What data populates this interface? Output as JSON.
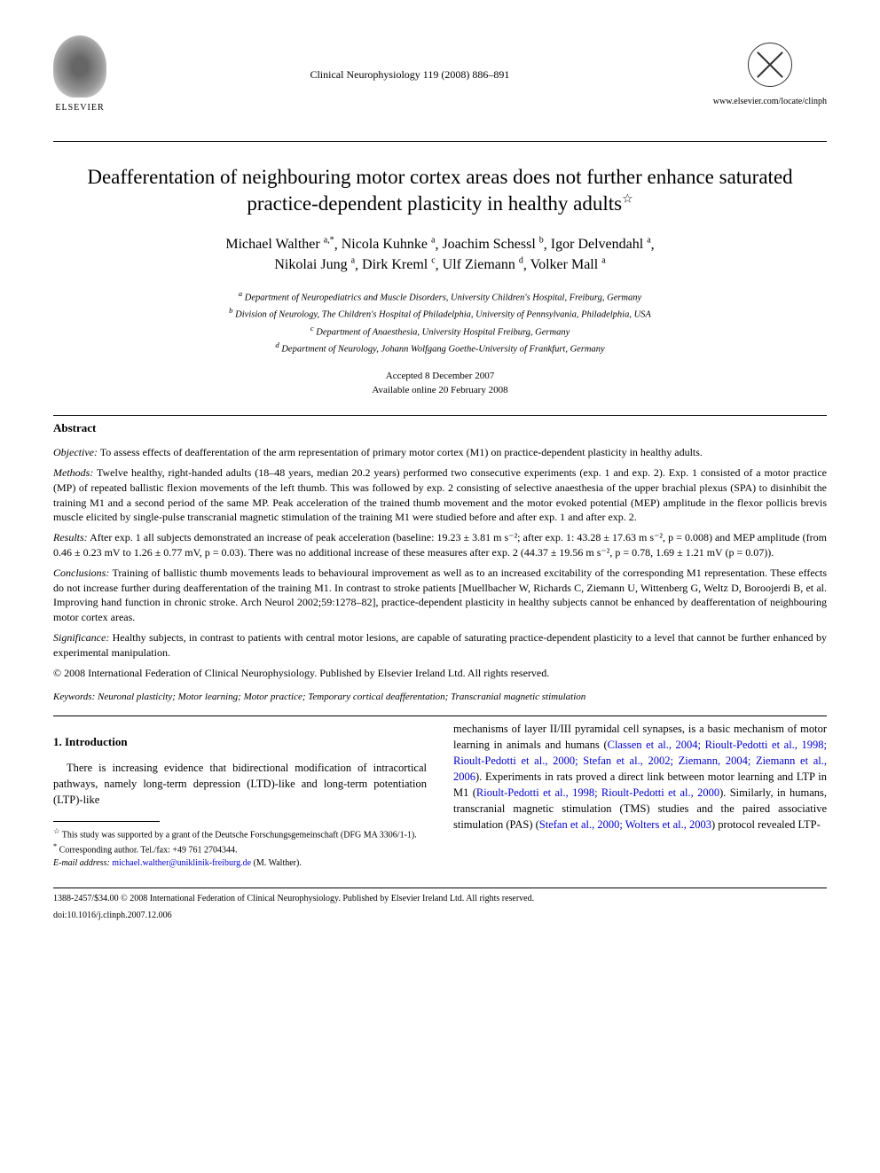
{
  "header": {
    "publisher": "ELSEVIER",
    "journal_citation": "Clinical Neurophysiology 119 (2008) 886–891",
    "journal_url": "www.elsevier.com/locate/clinph"
  },
  "title": "Deafferentation of neighbouring motor cortex areas does not further enhance saturated practice-dependent plasticity in healthy adults",
  "title_note_marker": "☆",
  "authors": [
    {
      "name": "Michael Walther",
      "affil": "a,*"
    },
    {
      "name": "Nicola Kuhnke",
      "affil": "a"
    },
    {
      "name": "Joachim Schessl",
      "affil": "b"
    },
    {
      "name": "Igor Delvendahl",
      "affil": "a"
    },
    {
      "name": "Nikolai Jung",
      "affil": "a"
    },
    {
      "name": "Dirk Kreml",
      "affil": "c"
    },
    {
      "name": "Ulf Ziemann",
      "affil": "d"
    },
    {
      "name": "Volker Mall",
      "affil": "a"
    }
  ],
  "affiliations": {
    "a": "Department of Neuropediatrics and Muscle Disorders, University Children's Hospital, Freiburg, Germany",
    "b": "Division of Neurology, The Children's Hospital of Philadelphia, University of Pennsylvania, Philadelphia, USA",
    "c": "Department of Anaesthesia, University Hospital Freiburg, Germany",
    "d": "Department of Neurology, Johann Wolfgang Goethe-University of Frankfurt, Germany"
  },
  "dates": {
    "accepted": "Accepted 8 December 2007",
    "available": "Available online 20 February 2008"
  },
  "abstract": {
    "heading": "Abstract",
    "objective_label": "Objective:",
    "objective": "To assess effects of deafferentation of the arm representation of primary motor cortex (M1) on practice-dependent plasticity in healthy adults.",
    "methods_label": "Methods:",
    "methods": "Twelve healthy, right-handed adults (18–48 years, median 20.2 years) performed two consecutive experiments (exp. 1 and exp. 2). Exp. 1 consisted of a motor practice (MP) of repeated ballistic flexion movements of the left thumb. This was followed by exp. 2 consisting of selective anaesthesia of the upper brachial plexus (SPA) to disinhibit the training M1 and a second period of the same MP. Peak acceleration of the trained thumb movement and the motor evoked potential (MEP) amplitude in the flexor pollicis brevis muscle elicited by single-pulse transcranial magnetic stimulation of the training M1 were studied before and after exp. 1 and after exp. 2.",
    "results_label": "Results:",
    "results": "After exp. 1 all subjects demonstrated an increase of peak acceleration (baseline: 19.23 ± 3.81 m s⁻²; after exp. 1: 43.28 ± 17.63 m s⁻², p = 0.008) and MEP amplitude (from 0.46 ± 0.23 mV to 1.26 ± 0.77 mV, p = 0.03). There was no additional increase of these measures after exp. 2 (44.37 ± 19.56 m s⁻², p = 0.78, 1.69 ± 1.21 mV (p = 0.07)).",
    "conclusions_label": "Conclusions:",
    "conclusions": "Training of ballistic thumb movements leads to behavioural improvement as well as to an increased excitability of the corresponding M1 representation. These effects do not increase further during deafferentation of the training M1. In contrast to stroke patients [Muellbacher W, Richards C, Ziemann U, Wittenberg G, Weltz D, Boroojerdi B, et al. Improving hand function in chronic stroke. Arch Neurol 2002;59:1278–82], practice-dependent plasticity in healthy subjects cannot be enhanced by deafferentation of neighbouring motor cortex areas.",
    "significance_label": "Significance:",
    "significance": "Healthy subjects, in contrast to patients with central motor lesions, are capable of saturating practice-dependent plasticity to a level that cannot be further enhanced by experimental manipulation.",
    "copyright": "© 2008 International Federation of Clinical Neurophysiology. Published by Elsevier Ireland Ltd. All rights reserved."
  },
  "keywords": {
    "label": "Keywords:",
    "text": "Neuronal plasticity; Motor learning; Motor practice; Temporary cortical deafferentation; Transcranial magnetic stimulation"
  },
  "introduction": {
    "heading": "1. Introduction",
    "col1": "There is increasing evidence that bidirectional modification of intracortical pathways, namely long-term depression (LTD)-like and long-term potentiation (LTP)-like",
    "col2_pre": "mechanisms of layer II/III pyramidal cell synapses, is a basic mechanism of motor learning in animals and humans (",
    "col2_link1": "Classen et al., 2004; Rioult-Pedotti et al., 1998; Rioult-Pedotti et al., 2000; Stefan et al., 2002; Ziemann, 2004; Ziemann et al., 2006",
    "col2_mid1": "). Experiments in rats proved a direct link between motor learning and LTP in M1 (",
    "col2_link2": "Rioult-Pedotti et al., 1998; Rioult-Pedotti et al., 2000",
    "col2_mid2": "). Similarly, in humans, transcranial magnetic stimulation (TMS) studies and the paired associative stimulation (PAS) (",
    "col2_link3": "Stefan et al., 2000; Wolters et al., 2003",
    "col2_post": ") protocol revealed LTP-"
  },
  "footnotes": {
    "funding": "This study was supported by a grant of the Deutsche Forschungsgemeinschaft (DFG MA 3306/1-1).",
    "corresponding": "Corresponding author. Tel./fax: +49 761 2704344.",
    "email_label": "E-mail address:",
    "email": "michael.walther@uniklinik-freiburg.de",
    "email_suffix": "(M. Walther)."
  },
  "bottom": {
    "copyright": "1388-2457/$34.00 © 2008 International Federation of Clinical Neurophysiology. Published by Elsevier Ireland Ltd. All rights reserved.",
    "doi": "doi:10.1016/j.clinph.2007.12.006"
  },
  "colors": {
    "text": "#000000",
    "link": "#0000cc",
    "background": "#ffffff"
  },
  "typography": {
    "title_fontsize": 23,
    "author_fontsize": 16,
    "body_fontsize": 12.5,
    "abstract_fontsize": 12,
    "footnote_fontsize": 10,
    "font_family": "Times New Roman"
  }
}
